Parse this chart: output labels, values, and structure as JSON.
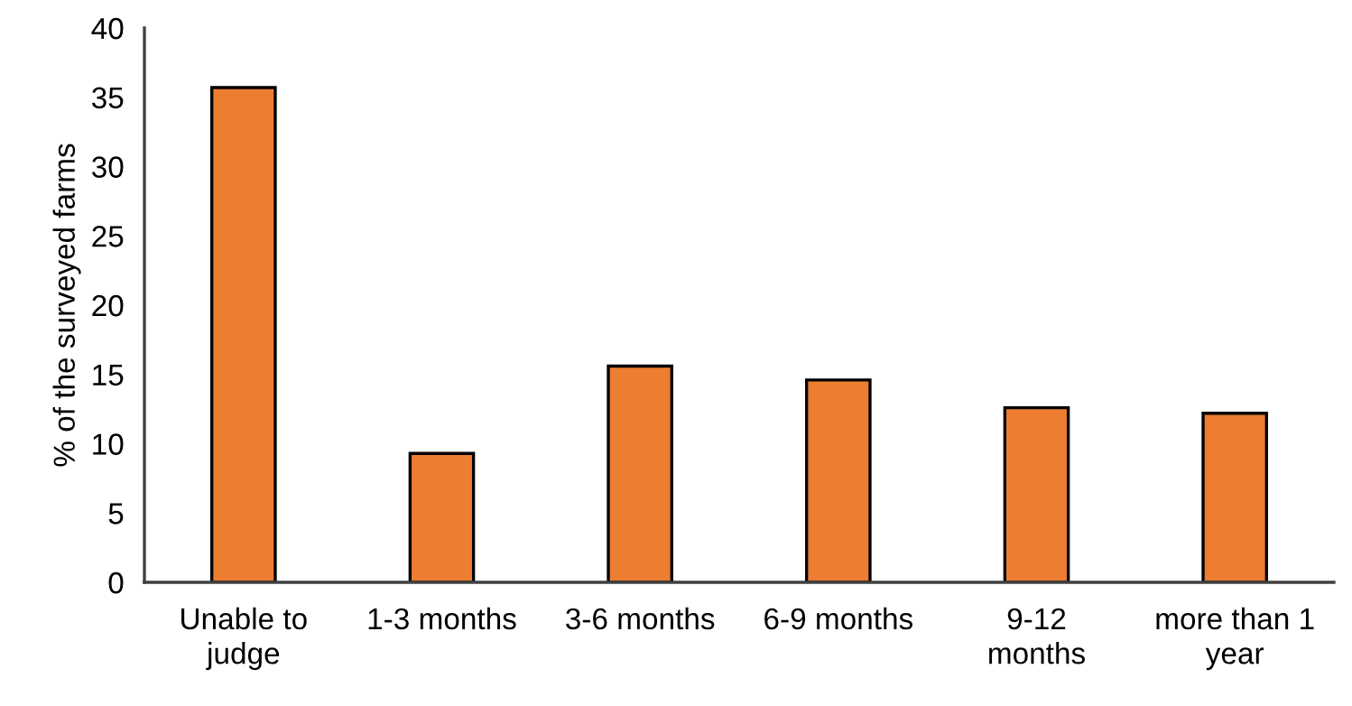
{
  "chart_data": {
    "type": "bar",
    "ylabel": "% of the surveyed farms",
    "categories": [
      "Unable to\njudge",
      "1-3 months",
      "3-6 months",
      "6-9 months",
      "9-12\nmonths",
      "more than 1\nyear"
    ],
    "values": [
      35.7,
      9.3,
      15.6,
      14.6,
      12.6,
      12.2
    ],
    "color": "#ed7d31",
    "ylim": [
      0,
      40
    ],
    "yticks": [
      0,
      5,
      10,
      15,
      20,
      25,
      30,
      35,
      40
    ],
    "grid": false
  }
}
